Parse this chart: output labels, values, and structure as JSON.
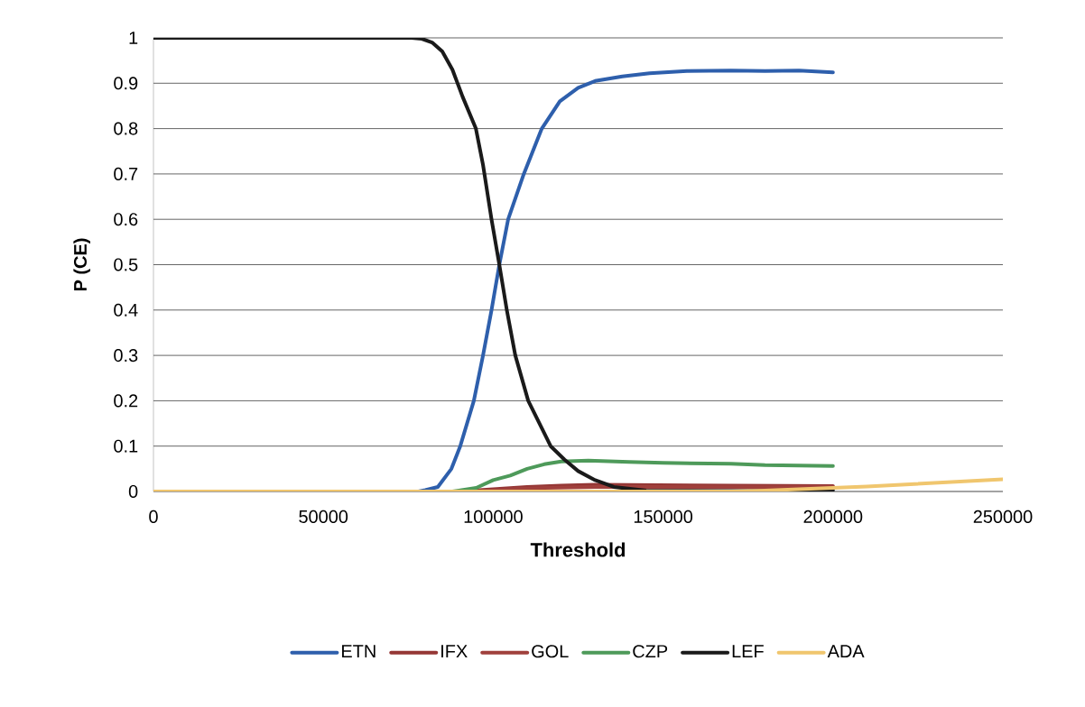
{
  "chart_data": {
    "type": "line",
    "xlabel": "Threshold",
    "ylabel": "P (CE)",
    "xlim": [
      0,
      250000
    ],
    "ylim": [
      0,
      1
    ],
    "xticks": [
      0,
      50000,
      100000,
      150000,
      200000,
      250000
    ],
    "yticks": [
      0,
      0.1,
      0.2,
      0.3,
      0.4,
      0.5,
      0.6,
      0.7,
      0.8,
      0.9,
      1
    ],
    "grid": "y",
    "legend": "bottom",
    "series": [
      {
        "name": "ETN",
        "color": "#2e5fac",
        "x": [
          0,
          78000,
          80000,
          83700,
          87700,
          90300,
          94300,
          97000,
          99500,
          101800,
          104400,
          109000,
          114300,
          119600,
          125000,
          130000,
          138000,
          146000,
          157000,
          170000,
          180000,
          190000,
          200000
        ],
        "values": [
          0,
          0,
          0.003,
          0.01,
          0.05,
          0.1,
          0.2,
          0.3,
          0.4,
          0.5,
          0.6,
          0.7,
          0.8,
          0.86,
          0.89,
          0.905,
          0.915,
          0.922,
          0.927,
          0.928,
          0.927,
          0.928,
          0.924
        ]
      },
      {
        "name": "IFX",
        "color": "#953735",
        "x": [
          0,
          90000,
          100000,
          110000,
          120000,
          130000,
          150000,
          170000,
          200000
        ],
        "values": [
          0,
          0,
          0.005,
          0.01,
          0.013,
          0.015,
          0.014,
          0.013,
          0.012
        ]
      },
      {
        "name": "GOL",
        "color": "#a0403c",
        "x": [
          0,
          95000,
          105000,
          115000,
          130000,
          150000,
          170000,
          200000
        ],
        "values": [
          0,
          0,
          0.005,
          0.008,
          0.01,
          0.01,
          0.01,
          0.01
        ]
      },
      {
        "name": "CZP",
        "color": "#4e9a5a",
        "x": [
          0,
          88000,
          95000,
          100000,
          105000,
          110000,
          115000,
          120000,
          128000,
          140000,
          150000,
          160000,
          170000,
          180000,
          190000,
          200000
        ],
        "values": [
          0,
          0,
          0.008,
          0.025,
          0.035,
          0.05,
          0.06,
          0.066,
          0.068,
          0.065,
          0.063,
          0.062,
          0.061,
          0.058,
          0.057,
          0.056
        ]
      },
      {
        "name": "LEF",
        "color": "#1a1a1a",
        "x": [
          0,
          76000,
          79000,
          82000,
          85000,
          88000,
          91000,
          94900,
          97000,
          99500,
          101800,
          104000,
          106500,
          110300,
          116900,
          121000,
          125000,
          130000,
          135500,
          145000,
          175000,
          200000
        ],
        "values": [
          1,
          1,
          0.998,
          0.99,
          0.97,
          0.93,
          0.87,
          0.8,
          0.72,
          0.6,
          0.5,
          0.4,
          0.3,
          0.2,
          0.1,
          0.07,
          0.045,
          0.025,
          0.01,
          0.002,
          0.001,
          0.003
        ]
      },
      {
        "name": "ADA",
        "color": "#f0c66e",
        "x": [
          0,
          170000,
          180000,
          190000,
          200000,
          210000,
          220000,
          230000,
          240000,
          250000
        ],
        "values": [
          0,
          0,
          0.002,
          0.005,
          0.008,
          0.011,
          0.015,
          0.019,
          0.023,
          0.027
        ]
      }
    ]
  }
}
